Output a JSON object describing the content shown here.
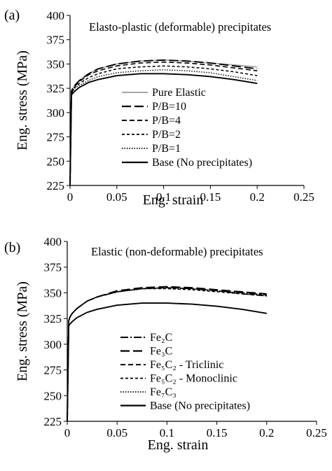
{
  "chart_data": [
    {
      "panel_label": "(a)",
      "type": "line",
      "title": "Elasto-plastic (deformable) precipitates",
      "xlabel": "Eng. strain",
      "ylabel": "Eng. stress (MPa)",
      "xlim": [
        0,
        0.25
      ],
      "ylim": [
        225,
        400
      ],
      "xticks": [
        "0",
        "0.05",
        "0.1",
        "0.15",
        "0.2",
        "0.25"
      ],
      "yticks": [
        "225",
        "250",
        "275",
        "300",
        "325",
        "350",
        "375",
        "400"
      ],
      "grid": false,
      "legend_position": "center-right",
      "series": [
        {
          "name": "Pure Elastic",
          "style": "solid-gray",
          "x": [
            0,
            0.0015,
            0.003,
            0.005,
            0.01,
            0.02,
            0.03,
            0.05,
            0.075,
            0.1,
            0.125,
            0.15,
            0.175,
            0.2
          ],
          "y": [
            225,
            322,
            325,
            328,
            333,
            340,
            345,
            350,
            353,
            354,
            353,
            351,
            349,
            347
          ]
        },
        {
          "name": "P/B=10",
          "style": "long-dash",
          "x": [
            0,
            0.0015,
            0.003,
            0.005,
            0.01,
            0.02,
            0.03,
            0.05,
            0.075,
            0.1,
            0.125,
            0.15,
            0.175,
            0.2
          ],
          "y": [
            225,
            322,
            325,
            328,
            333,
            340,
            345,
            350,
            353,
            354,
            353,
            351,
            348,
            345
          ]
        },
        {
          "name": "P/B=4",
          "style": "dash",
          "x": [
            0,
            0.0015,
            0.003,
            0.005,
            0.01,
            0.02,
            0.03,
            0.05,
            0.075,
            0.1,
            0.125,
            0.15,
            0.175,
            0.2
          ],
          "y": [
            225,
            321,
            324,
            327,
            332,
            339,
            343,
            348,
            351,
            352,
            351,
            349,
            346,
            343
          ]
        },
        {
          "name": "P/B=2",
          "style": "short-dash",
          "x": [
            0,
            0.0015,
            0.003,
            0.005,
            0.01,
            0.02,
            0.03,
            0.05,
            0.075,
            0.1,
            0.125,
            0.15,
            0.175,
            0.2
          ],
          "y": [
            225,
            320,
            323,
            326,
            330,
            336,
            340,
            345,
            347,
            348,
            347,
            345,
            342,
            338
          ]
        },
        {
          "name": "P/B=1",
          "style": "dotted",
          "x": [
            0,
            0.0015,
            0.003,
            0.005,
            0.01,
            0.02,
            0.03,
            0.05,
            0.075,
            0.1,
            0.125,
            0.15,
            0.175,
            0.2
          ],
          "y": [
            225,
            319,
            322,
            325,
            328,
            333,
            337,
            341,
            343,
            344,
            343,
            341,
            337,
            333
          ]
        },
        {
          "name": "Base (No precipitates)",
          "style": "solid-black",
          "x": [
            0,
            0.0015,
            0.003,
            0.005,
            0.01,
            0.02,
            0.03,
            0.05,
            0.075,
            0.1,
            0.125,
            0.15,
            0.175,
            0.2
          ],
          "y": [
            225,
            318,
            320,
            322,
            326,
            331,
            334,
            338,
            340,
            340,
            339,
            337,
            334,
            330
          ]
        }
      ]
    },
    {
      "panel_label": "(b)",
      "type": "line",
      "title": "Elastic (non-deformable) precipitates",
      "xlabel": "Eng. strain",
      "ylabel": "Eng. stress (MPa)",
      "xlim": [
        0,
        0.25
      ],
      "ylim": [
        225,
        400
      ],
      "xticks": [
        "0",
        "0.05",
        "0.1",
        "0.15",
        "0.2",
        "0.25"
      ],
      "yticks": [
        "225",
        "250",
        "275",
        "300",
        "325",
        "350",
        "375",
        "400"
      ],
      "grid": false,
      "legend_position": "bottom-right",
      "series": [
        {
          "name": "Fe₂C",
          "style": "dash-dot",
          "x": [
            0,
            0.0015,
            0.003,
            0.005,
            0.01,
            0.02,
            0.03,
            0.05,
            0.075,
            0.1,
            0.125,
            0.15,
            0.175,
            0.2
          ],
          "y": [
            225,
            323,
            327,
            330,
            335,
            342,
            346,
            351,
            354,
            355,
            354,
            352,
            350,
            348
          ]
        },
        {
          "name": "Fe₃C",
          "style": "long-dash",
          "x": [
            0,
            0.0015,
            0.003,
            0.005,
            0.01,
            0.02,
            0.03,
            0.05,
            0.075,
            0.1,
            0.125,
            0.15,
            0.175,
            0.2
          ],
          "y": [
            225,
            323,
            327,
            330,
            335,
            342,
            346,
            352,
            355,
            356,
            355,
            353,
            351,
            349
          ]
        },
        {
          "name": "Fe₅C₂ - Triclinic",
          "style": "dash",
          "x": [
            0,
            0.0015,
            0.003,
            0.005,
            0.01,
            0.02,
            0.03,
            0.05,
            0.075,
            0.1,
            0.125,
            0.15,
            0.175,
            0.2
          ],
          "y": [
            225,
            323,
            327,
            330,
            335,
            342,
            346,
            351,
            354,
            355,
            354,
            352,
            349,
            347
          ]
        },
        {
          "name": "Fe₅C₂ - Monoclinic",
          "style": "short-dash",
          "x": [
            0,
            0.0015,
            0.003,
            0.005,
            0.01,
            0.02,
            0.03,
            0.05,
            0.075,
            0.1,
            0.125,
            0.15,
            0.175,
            0.2
          ],
          "y": [
            225,
            323,
            327,
            330,
            335,
            342,
            346,
            351,
            354,
            354,
            353,
            351,
            349,
            347
          ]
        },
        {
          "name": "Fe₇C₃",
          "style": "dotted",
          "x": [
            0,
            0.0015,
            0.003,
            0.005,
            0.01,
            0.02,
            0.03,
            0.05,
            0.075,
            0.1,
            0.125,
            0.15,
            0.175,
            0.2
          ],
          "y": [
            225,
            323,
            327,
            330,
            335,
            342,
            346,
            351,
            354,
            355,
            354,
            352,
            350,
            348
          ]
        },
        {
          "name": "Base (No precipitates)",
          "style": "solid-black",
          "x": [
            0,
            0.0015,
            0.003,
            0.005,
            0.01,
            0.02,
            0.03,
            0.05,
            0.075,
            0.1,
            0.125,
            0.15,
            0.175,
            0.2
          ],
          "y": [
            225,
            318,
            320,
            322,
            326,
            331,
            334,
            338,
            340,
            340,
            339,
            337,
            334,
            330
          ]
        }
      ]
    }
  ]
}
